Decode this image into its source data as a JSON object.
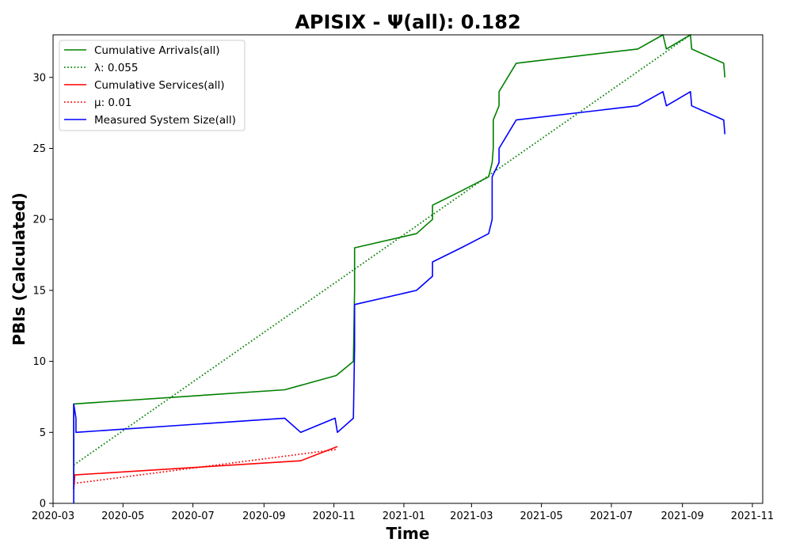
{
  "chart_data": {
    "type": "line",
    "title": "APISIX -  Ψ(all): 0.182",
    "xlabel": "Time",
    "ylabel": "PBIs (Calculated)",
    "xlim": [
      "2020-03-01",
      "2021-11-10"
    ],
    "ylim": [
      0,
      33
    ],
    "x_ticks": [
      "2020-03",
      "2020-05",
      "2020-07",
      "2020-09",
      "2020-11",
      "2021-01",
      "2021-03",
      "2021-05",
      "2021-07",
      "2021-09",
      "2021-11"
    ],
    "y_ticks": [
      0,
      5,
      10,
      15,
      20,
      25,
      30
    ],
    "grid": false,
    "legend_position": "top-left",
    "series": [
      {
        "name": "Cumulative Arrivals(all)",
        "color": "#008000",
        "style": "solid",
        "points": [
          [
            "2020-03-19",
            1
          ],
          [
            "2020-03-19",
            7
          ],
          [
            "2020-09-19",
            8
          ],
          [
            "2020-11-03",
            9
          ],
          [
            "2020-11-18",
            10
          ],
          [
            "2020-11-19",
            15
          ],
          [
            "2020-11-19",
            18
          ],
          [
            "2021-01-12",
            19
          ],
          [
            "2021-01-26",
            20
          ],
          [
            "2021-01-26",
            21
          ],
          [
            "2021-02-20",
            22
          ],
          [
            "2021-03-16",
            23
          ],
          [
            "2021-03-19",
            24
          ],
          [
            "2021-03-20",
            25
          ],
          [
            "2021-03-20",
            27
          ],
          [
            "2021-03-25",
            28
          ],
          [
            "2021-03-25",
            29
          ],
          [
            "2021-04-09",
            31
          ],
          [
            "2021-07-24",
            32
          ],
          [
            "2021-08-15",
            33
          ],
          [
            "2021-08-18",
            32
          ],
          [
            "2021-09-08",
            33
          ],
          [
            "2021-09-09",
            32
          ],
          [
            "2021-10-07",
            31
          ],
          [
            "2021-10-08",
            30
          ]
        ]
      },
      {
        "name": "λ: 0.055",
        "color": "#008000",
        "style": "dotted",
        "points": [
          [
            "2020-03-19",
            2.7
          ],
          [
            "2021-09-08",
            33
          ]
        ]
      },
      {
        "name": "Cumulative Services(all)",
        "color": "#ff0000",
        "style": "solid",
        "points": [
          [
            "2020-03-19",
            1
          ],
          [
            "2020-03-20",
            2
          ],
          [
            "2020-10-03",
            3
          ],
          [
            "2020-11-04",
            4
          ]
        ]
      },
      {
        "name": "μ: 0.01",
        "color": "#ff0000",
        "style": "dotted",
        "points": [
          [
            "2020-03-19",
            1.4
          ],
          [
            "2020-11-04",
            3.8
          ]
        ]
      },
      {
        "name": "Measured System Size(all)",
        "color": "#0000ff",
        "style": "solid",
        "points": [
          [
            "2020-03-19",
            0
          ],
          [
            "2020-03-19",
            7
          ],
          [
            "2020-03-21",
            6
          ],
          [
            "2020-03-21",
            5
          ],
          [
            "2020-09-19",
            6
          ],
          [
            "2020-10-03",
            5
          ],
          [
            "2020-11-02",
            6
          ],
          [
            "2020-11-04",
            5
          ],
          [
            "2020-11-18",
            6
          ],
          [
            "2020-11-19",
            11
          ],
          [
            "2020-11-19",
            14
          ],
          [
            "2021-01-12",
            15
          ],
          [
            "2021-01-26",
            16
          ],
          [
            "2021-01-26",
            17
          ],
          [
            "2021-02-20",
            18
          ],
          [
            "2021-03-16",
            19
          ],
          [
            "2021-03-19",
            20
          ],
          [
            "2021-03-19",
            21
          ],
          [
            "2021-03-19",
            23
          ],
          [
            "2021-03-25",
            24
          ],
          [
            "2021-03-25",
            25
          ],
          [
            "2021-04-09",
            27
          ],
          [
            "2021-07-24",
            28
          ],
          [
            "2021-08-15",
            29
          ],
          [
            "2021-08-18",
            28
          ],
          [
            "2021-09-08",
            29
          ],
          [
            "2021-09-09",
            28
          ],
          [
            "2021-10-07",
            27
          ],
          [
            "2021-10-08",
            26
          ]
        ]
      }
    ]
  }
}
